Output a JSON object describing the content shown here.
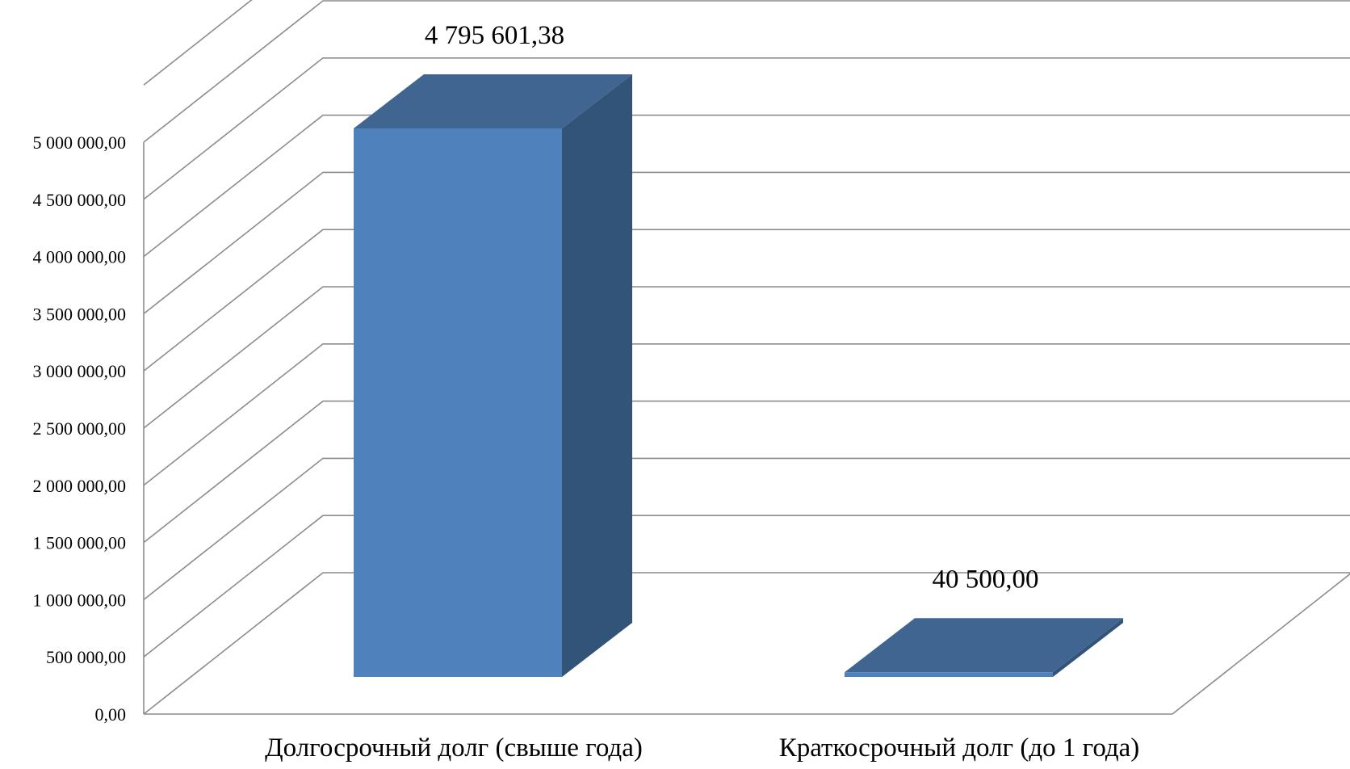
{
  "chart_data": {
    "type": "bar",
    "style": "3d-column",
    "categories": [
      "Долгосрочный долг (свыше года)",
      "Краткосрочный долг (до 1 года)"
    ],
    "values": [
      4795601.38,
      40500.0
    ],
    "value_labels": [
      "4 795 601,38",
      "40 500,00"
    ],
    "y_ticks": [
      {
        "value": 0,
        "label": "0,00"
      },
      {
        "value": 500000,
        "label": "500 000,00"
      },
      {
        "value": 1000000,
        "label": "1 000 000,00"
      },
      {
        "value": 1500000,
        "label": "1 500 000,00"
      },
      {
        "value": 2000000,
        "label": "2 000 000,00"
      },
      {
        "value": 2500000,
        "label": "2 500 000,00"
      },
      {
        "value": 3000000,
        "label": "3 000 000,00"
      },
      {
        "value": 3500000,
        "label": "3 500 000,00"
      },
      {
        "value": 4000000,
        "label": "4 000 000,00"
      },
      {
        "value": 4500000,
        "label": "4 500 000,00"
      },
      {
        "value": 5000000,
        "label": "5 000 000,00"
      }
    ],
    "ylim": [
      0,
      5000000
    ],
    "title": "",
    "xlabel": "",
    "ylabel": "",
    "grid": true,
    "legend": "none",
    "colors": {
      "front": "#4f81bd",
      "top": "#3f6590",
      "side": "#335479",
      "grid": "#8c8c8c"
    }
  }
}
